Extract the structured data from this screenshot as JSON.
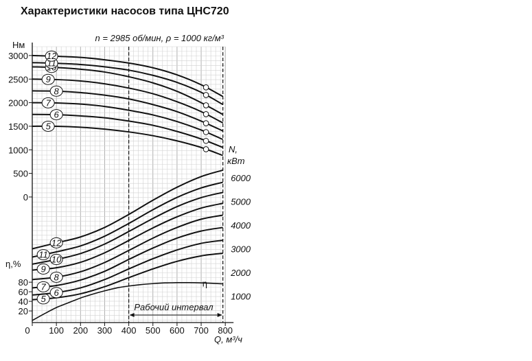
{
  "title": "Характеристики насосов типа ЦНС720",
  "subtitle": "n = 2985 об/мин, ρ = 1000 кг/м³",
  "chart_data": {
    "type": "line",
    "x_axis": {
      "label": "Q, м³/ч",
      "range": [
        0,
        800
      ],
      "ticks": [
        0,
        100,
        200,
        300,
        400,
        500,
        600,
        700,
        800
      ]
    },
    "head_axis": {
      "label": "Нм",
      "range": [
        0,
        3000
      ],
      "ticks": [
        0,
        500,
        1000,
        1500,
        2000,
        2500,
        3000
      ]
    },
    "power_axis": {
      "label_line1": "N,",
      "label_line2": "кВт",
      "range": [
        0,
        7000
      ],
      "ticks": [
        1000,
        2000,
        3000,
        4000,
        5000,
        6000
      ]
    },
    "eff_axis": {
      "label": "η,%",
      "range": [
        0,
        100
      ],
      "ticks": [
        20,
        40,
        60,
        80
      ]
    },
    "working_range": {
      "label": "Рабочий интервал",
      "q_min": 400,
      "q_max": 790
    },
    "grid": true,
    "x": [
      0,
      100,
      200,
      300,
      400,
      500,
      600,
      700,
      790
    ],
    "head_series": [
      {
        "name": "5",
        "values": [
          1500,
          1500,
          1480,
          1440,
          1380,
          1300,
          1190,
          1050,
          880
        ]
      },
      {
        "name": "6",
        "values": [
          1750,
          1745,
          1720,
          1680,
          1610,
          1520,
          1390,
          1230,
          1050
        ]
      },
      {
        "name": "7",
        "values": [
          2000,
          1995,
          1970,
          1920,
          1840,
          1740,
          1600,
          1420,
          1220
        ]
      },
      {
        "name": "8",
        "values": [
          2250,
          2245,
          2215,
          2160,
          2080,
          1960,
          1810,
          1610,
          1400
        ]
      },
      {
        "name": "9",
        "values": [
          2500,
          2490,
          2460,
          2400,
          2310,
          2190,
          2020,
          1810,
          1570
        ]
      },
      {
        "name": "10",
        "values": [
          2760,
          2745,
          2710,
          2650,
          2550,
          2420,
          2240,
          2000,
          1750
        ]
      },
      {
        "name": "11",
        "values": [
          2850,
          2835,
          2810,
          2760,
          2690,
          2580,
          2430,
          2220,
          1960
        ]
      },
      {
        "name": "12",
        "values": [
          3000,
          2985,
          2960,
          2910,
          2840,
          2740,
          2590,
          2380,
          2130
        ]
      }
    ],
    "power_series": [
      {
        "name": "5",
        "values": [
          850,
          930,
          1100,
          1400,
          1780,
          2150,
          2470,
          2700,
          2810
        ]
      },
      {
        "name": "6",
        "values": [
          1050,
          1150,
          1350,
          1700,
          2150,
          2580,
          2950,
          3230,
          3360
        ]
      },
      {
        "name": "7",
        "values": [
          1350,
          1450,
          1680,
          2050,
          2550,
          3030,
          3450,
          3750,
          3900
        ]
      },
      {
        "name": "8",
        "values": [
          1700,
          1800,
          2030,
          2420,
          2930,
          3450,
          3900,
          4250,
          4420
        ]
      },
      {
        "name": "9",
        "values": [
          2100,
          2200,
          2430,
          2830,
          3350,
          3880,
          4350,
          4720,
          4920
        ]
      },
      {
        "name": "10",
        "values": [
          2350,
          2550,
          2800,
          3200,
          3730,
          4280,
          4780,
          5160,
          5380
        ]
      },
      {
        "name": "11",
        "values": [
          2650,
          2870,
          3120,
          3530,
          4070,
          4650,
          5170,
          5570,
          5810
        ]
      },
      {
        "name": "12",
        "values": [
          3000,
          3250,
          3500,
          3900,
          4450,
          5050,
          5600,
          6050,
          6320
        ]
      }
    ],
    "efficiency": {
      "name": "η",
      "x": [
        0,
        50,
        100,
        150,
        200,
        250,
        300,
        350,
        400,
        450,
        500,
        550,
        600,
        650,
        700,
        750,
        790
      ],
      "values": [
        0,
        14,
        27,
        37,
        47,
        55,
        62,
        68,
        72,
        75,
        77,
        78.5,
        79,
        79,
        78.5,
        77.5,
        76.5
      ]
    },
    "design_point_q": 720
  }
}
